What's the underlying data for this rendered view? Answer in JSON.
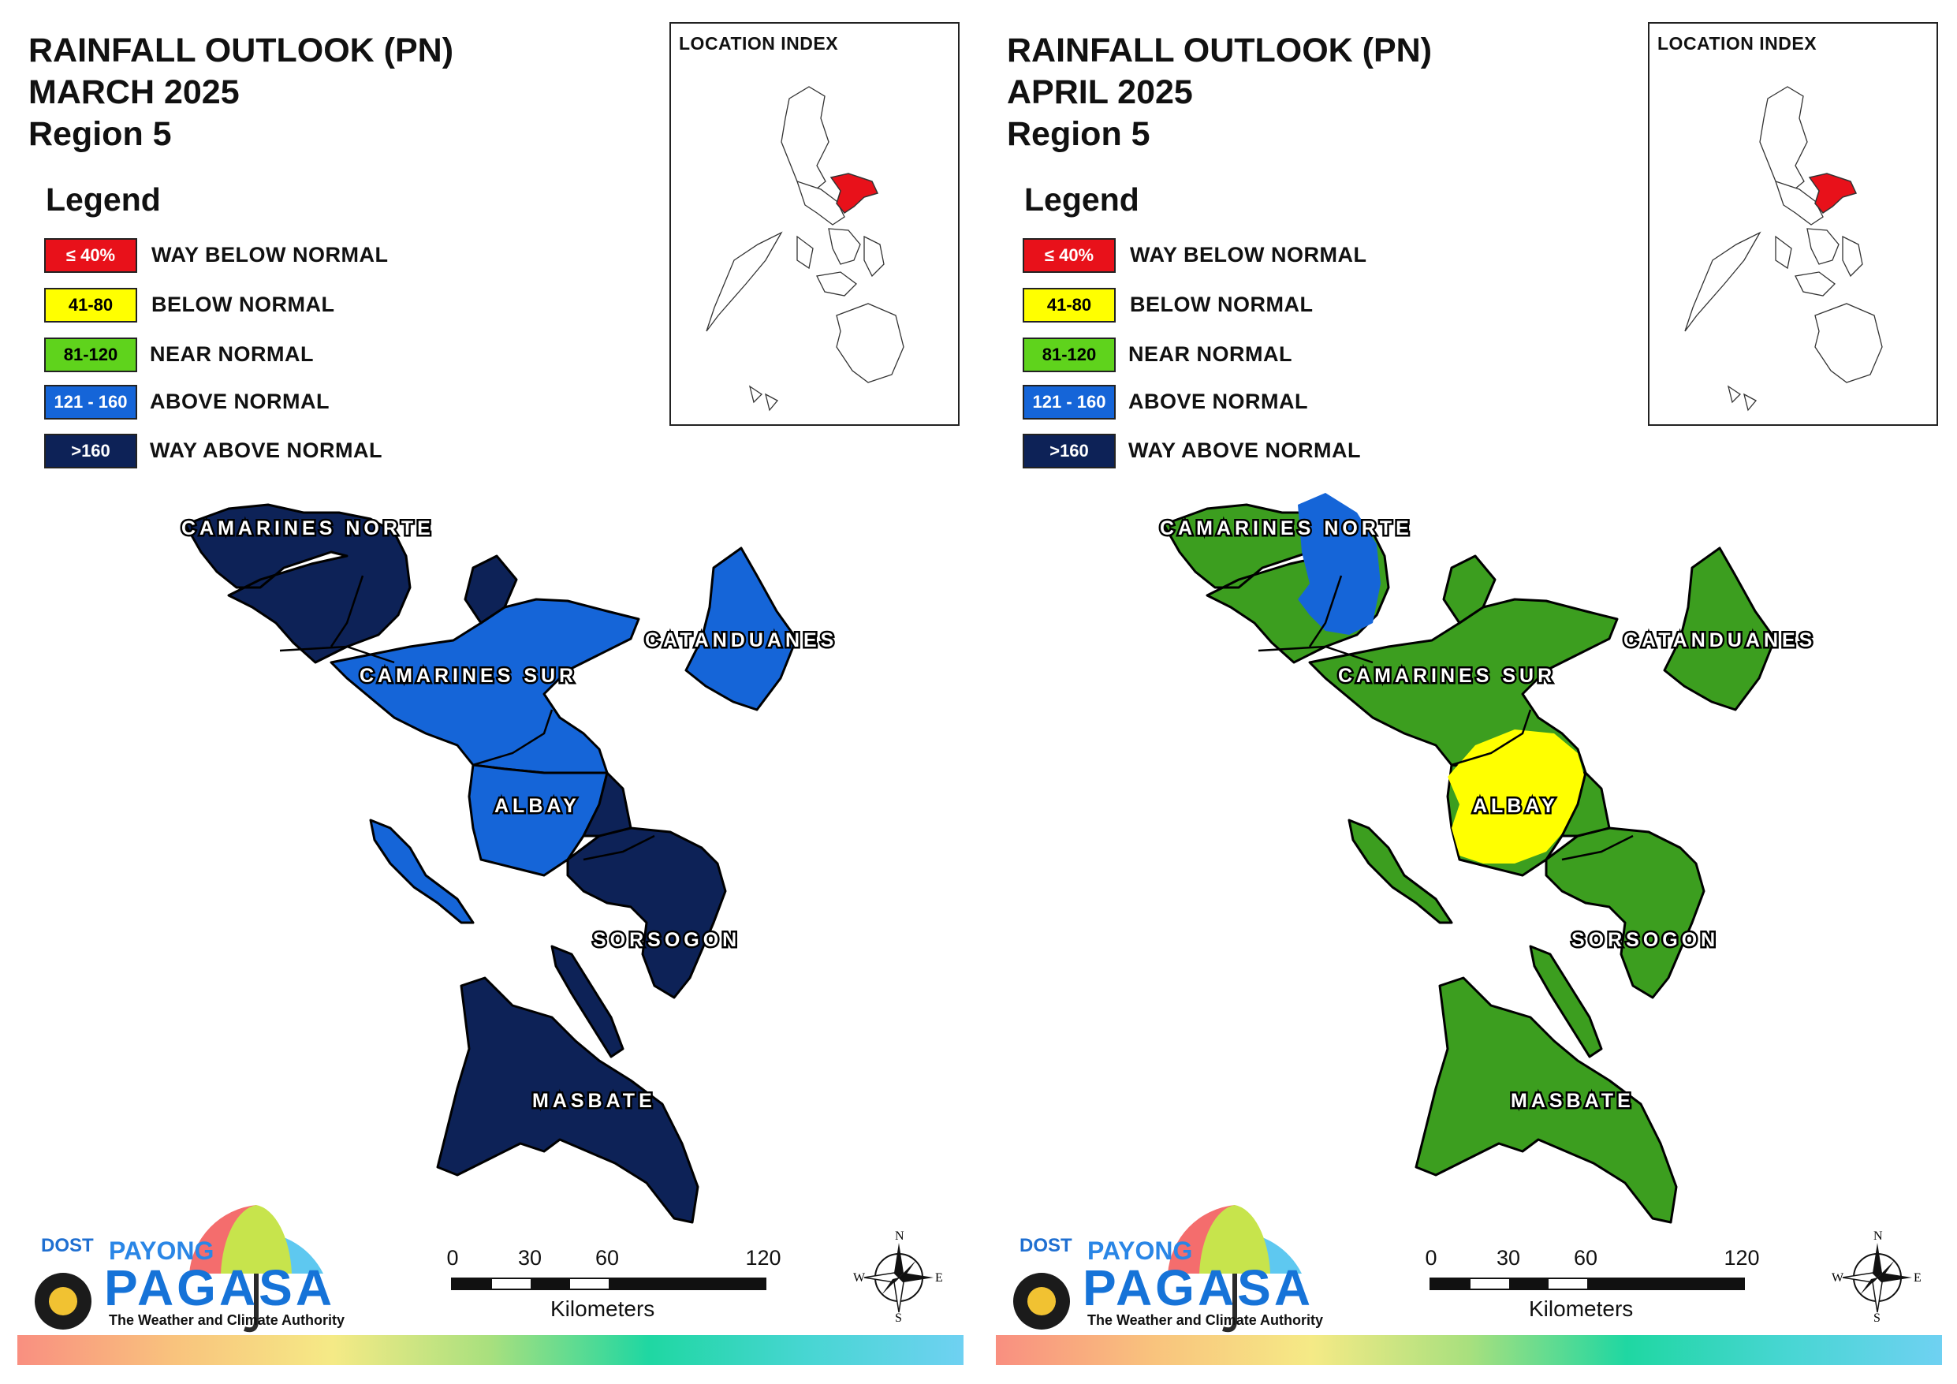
{
  "legend": {
    "title": "Legend",
    "classes": [
      {
        "range": "≤ 40%",
        "label": "WAY BELOW NORMAL",
        "color": "#e8111a",
        "text_color": "#ffffff"
      },
      {
        "range": "41-80",
        "label": "BELOW NORMAL",
        "color": "#ffff00",
        "text_color": "#000000"
      },
      {
        "range": "81-120",
        "label": "NEAR NORMAL",
        "color": "#5fd31c",
        "text_color": "#000000"
      },
      {
        "range": "121 - 160",
        "label": "ABOVE NORMAL",
        "color": "#1565d8",
        "text_color": "#ffffff"
      },
      {
        "range": ">160",
        "label": "WAY ABOVE NORMAL",
        "color": "#0d2257",
        "text_color": "#ffffff"
      }
    ]
  },
  "location_index": {
    "label": "LOCATION INDEX",
    "highlight_color": "#e8111a"
  },
  "provinces": {
    "camarines_norte": "CAMARINES NORTE",
    "camarines_sur": "CAMARINES SUR",
    "catanduanes": "CATANDUANES",
    "albay": "ALBAY",
    "sorsogon": "SORSOGON",
    "masbate": "MASBATE"
  },
  "scale": {
    "ticks": [
      "0",
      "30",
      "60",
      "120"
    ],
    "unit": "Kilometers"
  },
  "compass": {
    "n": "N",
    "s": "S",
    "e": "E",
    "w": "W"
  },
  "logo": {
    "dost": "DOST",
    "payong": "PAYONG",
    "pagasa": "PAGASA",
    "tagline": "The Weather and Climate Authority"
  },
  "maps": [
    {
      "title_line1": "RAINFALL OUTLOOK (PN)",
      "title_line2": "MARCH 2025",
      "title_line3": "Region 5",
      "province_class": {
        "camarines_norte": "WAY ABOVE NORMAL",
        "camarines_sur": "ABOVE NORMAL",
        "catanduanes": "ABOVE NORMAL",
        "albay": "ABOVE NORMAL",
        "sorsogon": "WAY ABOVE NORMAL",
        "masbate": "WAY ABOVE NORMAL"
      }
    },
    {
      "title_line1": "RAINFALL OUTLOOK (PN)",
      "title_line2": "APRIL 2025",
      "title_line3": "Region 5",
      "province_class": {
        "camarines_norte": "NEAR NORMAL",
        "camarines_sur": "NEAR NORMAL",
        "catanduanes": "NEAR NORMAL",
        "albay": "BELOW NORMAL",
        "sorsogon": "NEAR NORMAL",
        "masbate": "NEAR NORMAL"
      },
      "pockets": [
        {
          "province": "camarines_norte",
          "class": "ABOVE NORMAL"
        }
      ]
    }
  ]
}
